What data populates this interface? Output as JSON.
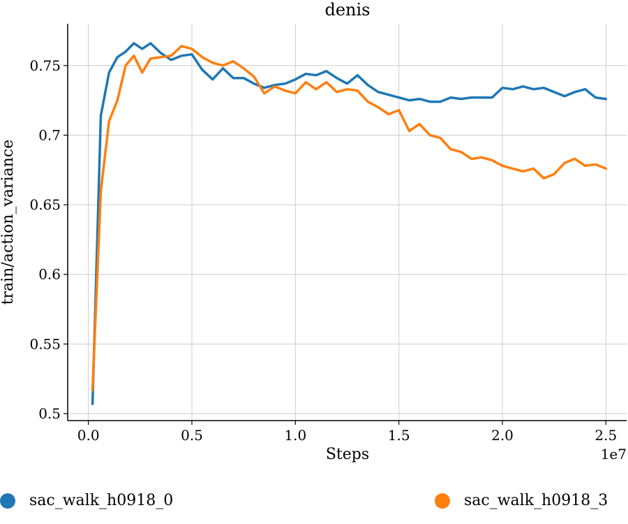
{
  "chart_data": {
    "type": "line",
    "title": "denis",
    "xlabel": "Steps",
    "ylabel": "train/action_variance",
    "x_scale_label": "1e7",
    "xlim": [
      -0.1,
      2.6
    ],
    "ylim": [
      0.495,
      0.78
    ],
    "x_ticks": [
      0.0,
      0.5,
      1.0,
      1.5,
      2.0,
      2.5
    ],
    "x_tick_labels": [
      "0.0",
      "0.5",
      "1.0",
      "1.5",
      "2.0",
      "2.5"
    ],
    "y_ticks": [
      0.5,
      0.55,
      0.6,
      0.65,
      0.7,
      0.75
    ],
    "y_tick_labels": [
      "0.5",
      "0.55",
      "0.6",
      "0.65",
      "0.7",
      "0.75"
    ],
    "grid": true,
    "legend_position": "bottom",
    "series": [
      {
        "name": "sac_walk_h0918_0",
        "color": "#1f77b4",
        "x": [
          0.02,
          0.06,
          0.1,
          0.14,
          0.18,
          0.22,
          0.26,
          0.3,
          0.35,
          0.4,
          0.45,
          0.5,
          0.55,
          0.6,
          0.65,
          0.7,
          0.75,
          0.8,
          0.85,
          0.9,
          0.95,
          1.0,
          1.05,
          1.1,
          1.15,
          1.2,
          1.25,
          1.3,
          1.35,
          1.4,
          1.45,
          1.5,
          1.55,
          1.6,
          1.65,
          1.7,
          1.75,
          1.8,
          1.85,
          1.9,
          1.95,
          2.0,
          2.05,
          2.1,
          2.15,
          2.2,
          2.25,
          2.3,
          2.35,
          2.4,
          2.45,
          2.5
        ],
        "y": [
          0.507,
          0.714,
          0.745,
          0.756,
          0.76,
          0.766,
          0.762,
          0.766,
          0.759,
          0.754,
          0.757,
          0.758,
          0.747,
          0.74,
          0.748,
          0.741,
          0.741,
          0.737,
          0.734,
          0.736,
          0.737,
          0.74,
          0.744,
          0.743,
          0.746,
          0.741,
          0.737,
          0.743,
          0.736,
          0.731,
          0.729,
          0.727,
          0.725,
          0.726,
          0.724,
          0.724,
          0.727,
          0.726,
          0.727,
          0.727,
          0.727,
          0.734,
          0.733,
          0.735,
          0.733,
          0.734,
          0.731,
          0.728,
          0.731,
          0.733,
          0.727,
          0.726
        ]
      },
      {
        "name": "sac_walk_h0918_3",
        "color": "#ff7f0e",
        "x": [
          0.02,
          0.06,
          0.1,
          0.14,
          0.18,
          0.22,
          0.26,
          0.3,
          0.35,
          0.4,
          0.45,
          0.5,
          0.55,
          0.6,
          0.65,
          0.7,
          0.75,
          0.8,
          0.85,
          0.9,
          0.95,
          1.0,
          1.05,
          1.1,
          1.15,
          1.2,
          1.25,
          1.3,
          1.35,
          1.4,
          1.45,
          1.5,
          1.55,
          1.6,
          1.65,
          1.7,
          1.75,
          1.8,
          1.85,
          1.9,
          1.95,
          2.0,
          2.05,
          2.1,
          2.15,
          2.2,
          2.25,
          2.3,
          2.35,
          2.4,
          2.45,
          2.5
        ],
        "y": [
          0.517,
          0.66,
          0.71,
          0.725,
          0.75,
          0.757,
          0.745,
          0.755,
          0.756,
          0.757,
          0.764,
          0.762,
          0.756,
          0.752,
          0.75,
          0.753,
          0.748,
          0.742,
          0.73,
          0.735,
          0.732,
          0.73,
          0.738,
          0.733,
          0.738,
          0.731,
          0.733,
          0.732,
          0.724,
          0.72,
          0.715,
          0.718,
          0.703,
          0.708,
          0.7,
          0.698,
          0.69,
          0.688,
          0.683,
          0.684,
          0.682,
          0.678,
          0.676,
          0.674,
          0.676,
          0.669,
          0.672,
          0.68,
          0.683,
          0.678,
          0.679,
          0.676
        ]
      }
    ]
  }
}
